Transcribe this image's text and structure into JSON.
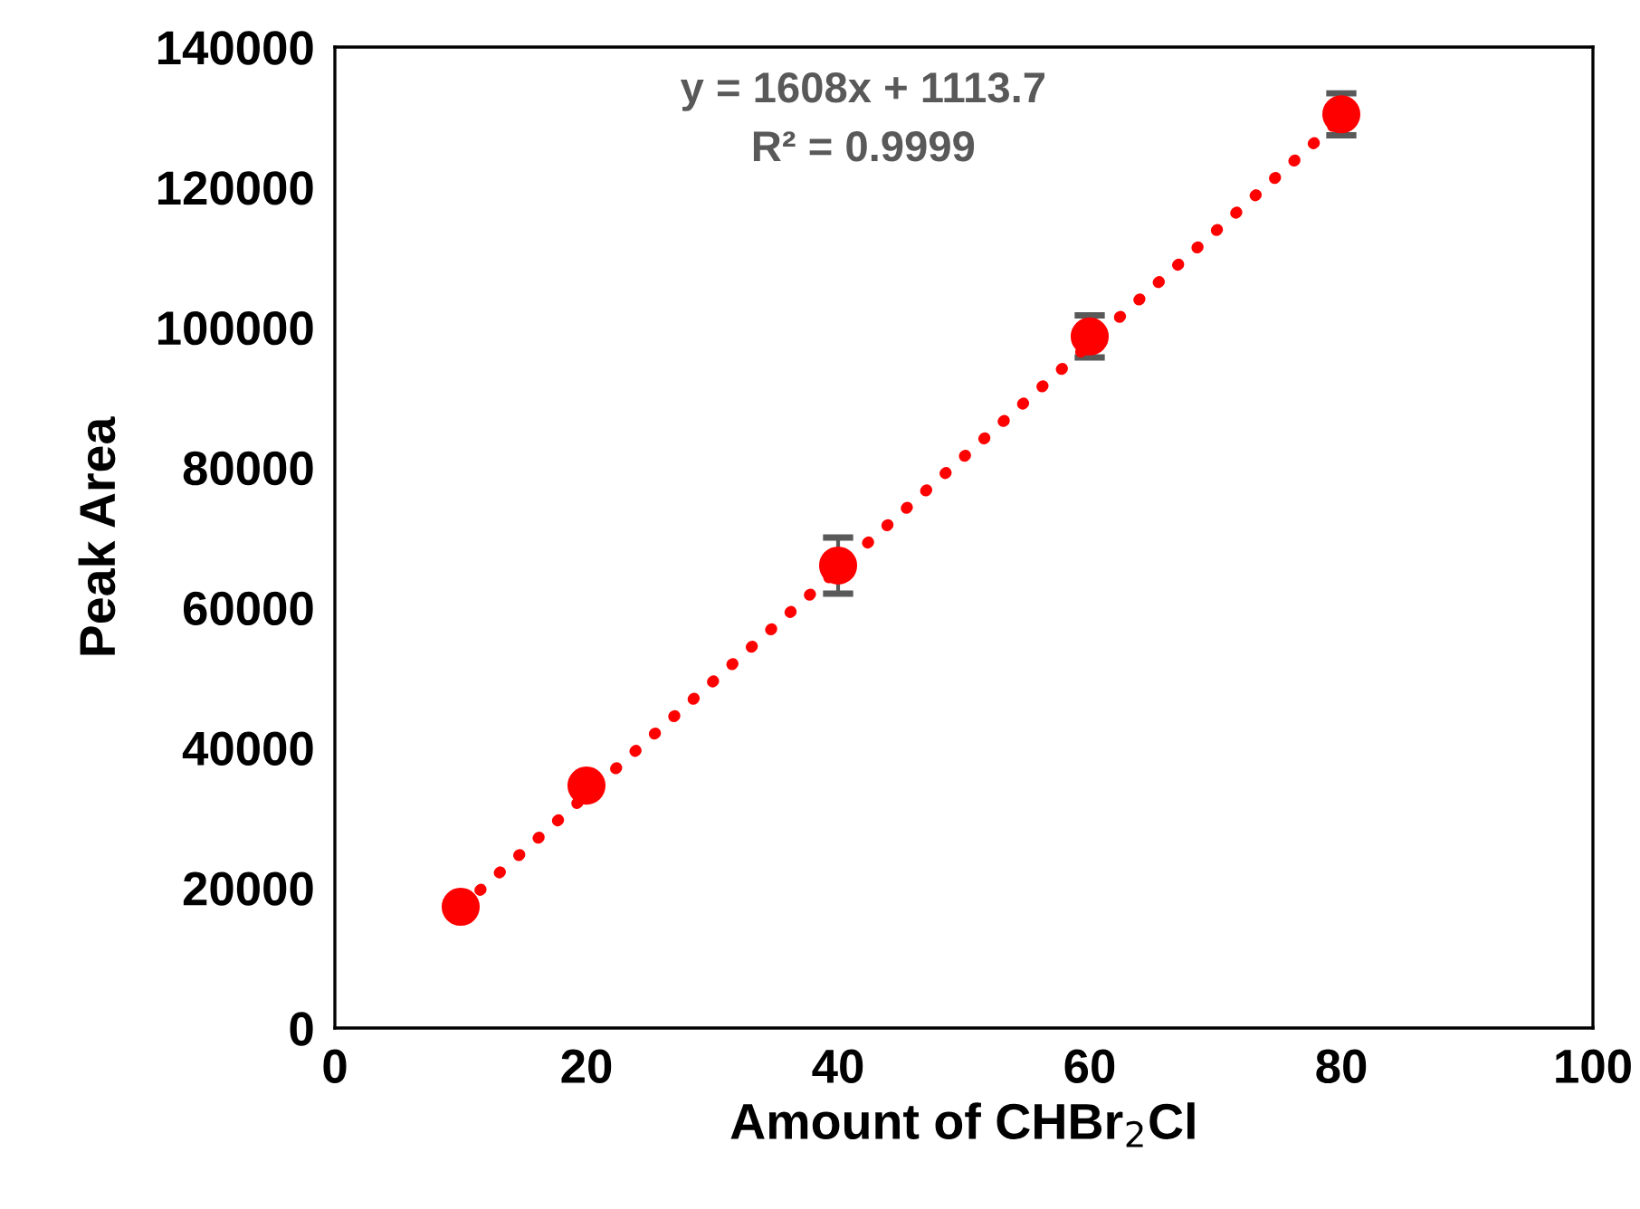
{
  "chart_data": {
    "type": "scatter",
    "xlabel": "Amount of CHBr$_{2}$Cl",
    "ylabel": "Peak Area",
    "xlim": [
      0,
      100
    ],
    "xticks": [
      0,
      20,
      40,
      60,
      80,
      100
    ],
    "ylim": [
      0,
      140000
    ],
    "yticks": [
      0,
      20000,
      40000,
      60000,
      80000,
      100000,
      120000,
      140000
    ],
    "grid": false,
    "legend": false,
    "annotations": [
      "y = 1608x + 1113.7",
      "R² = 0.9999"
    ],
    "series": [
      {
        "color": "#ff0000",
        "marker": "circle",
        "x": [
          10,
          20,
          40,
          60,
          80
        ],
        "values": [
          17300,
          34600,
          66000,
          98700,
          130400
        ],
        "errors": [
          null,
          null,
          4000,
          3000,
          3000
        ]
      },
      {
        "type": "line",
        "color": "#ff0000",
        "line_style": "dotted",
        "marker": "none",
        "x": [
          10,
          80
        ],
        "values": [
          17200,
          129800
        ]
      }
    ]
  }
}
